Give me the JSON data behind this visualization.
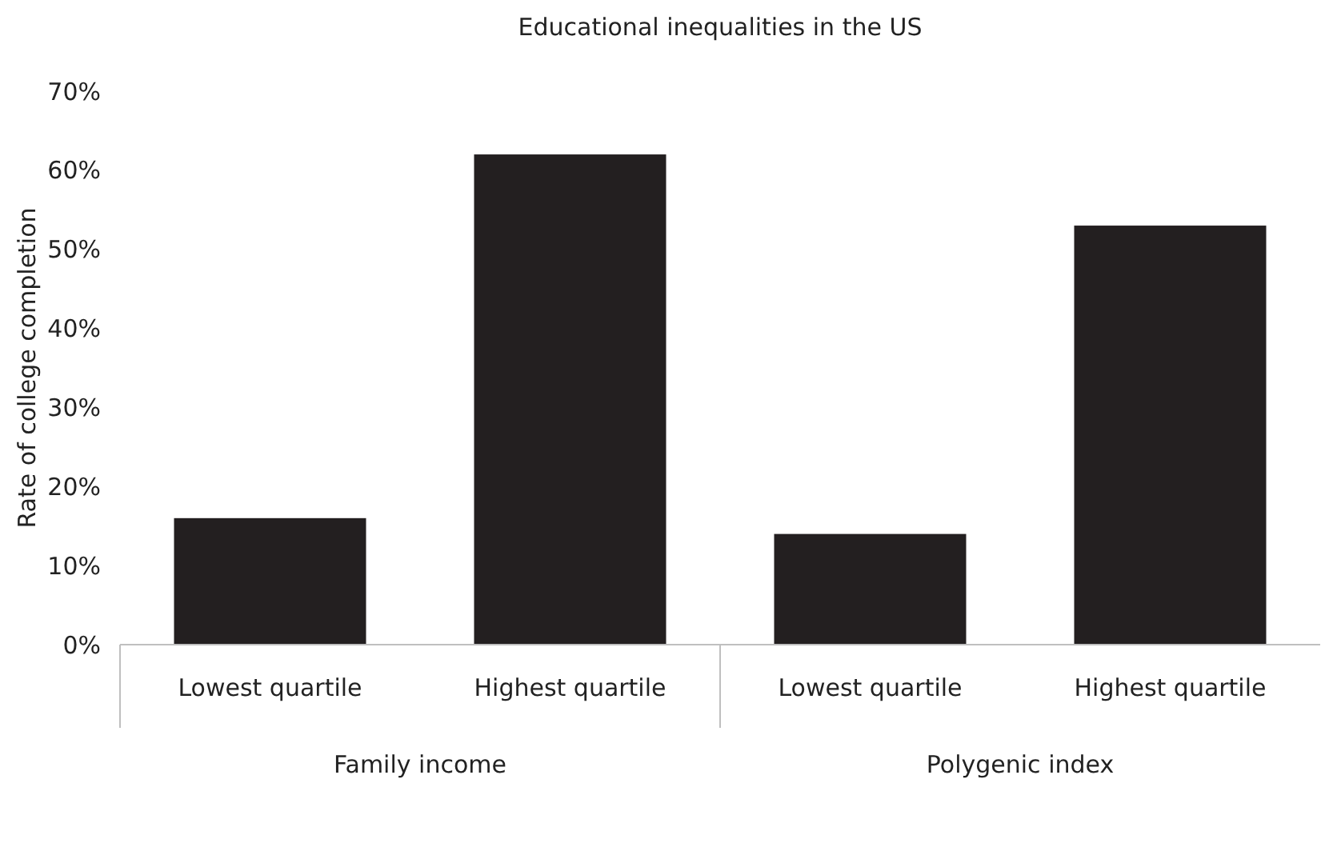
{
  "chart_data": {
    "type": "bar",
    "title": "Educational inequalities in the US",
    "ylabel": "Rate of college completion",
    "categories": [
      "Lowest quartile",
      "Highest quartile",
      "Lowest quartile",
      "Highest quartile"
    ],
    "values": [
      16,
      62,
      14,
      53
    ],
    "color": "#231f20",
    "annotations": [
      "Family income",
      "Polygenic index"
    ],
    "ylim": [
      0,
      70
    ],
    "yticks": [
      {
        "value": 0,
        "label": "0%"
      },
      {
        "value": 10,
        "label": "10%"
      },
      {
        "value": 20,
        "label": "20%"
      },
      {
        "value": 30,
        "label": "30%"
      },
      {
        "value": 40,
        "label": "40%"
      },
      {
        "value": 50,
        "label": "50%"
      },
      {
        "value": 60,
        "label": "60%"
      },
      {
        "value": 70,
        "label": "70%"
      }
    ],
    "grid": false
  }
}
